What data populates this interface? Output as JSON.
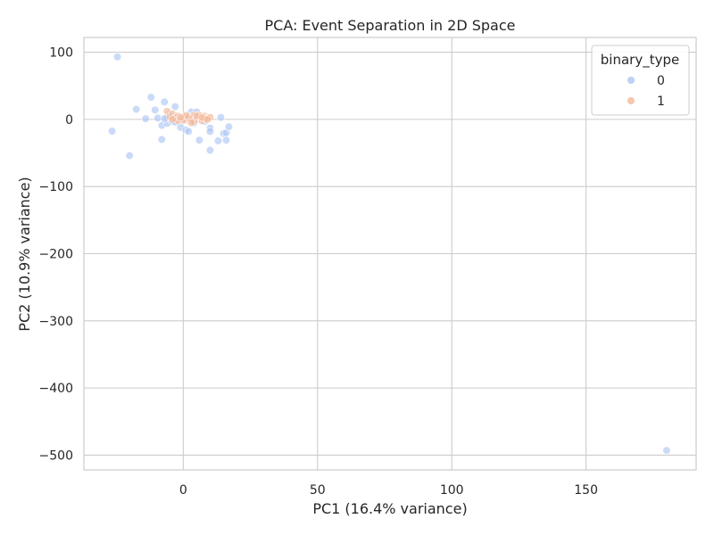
{
  "chart_data": {
    "type": "scatter",
    "title": "PCA: Event Separation in 2D Space",
    "xlabel": "PC1 (16.4% variance)",
    "ylabel": "PC2 (10.9% variance)",
    "xlim": [
      -37,
      191
    ],
    "ylim": [
      -522,
      122
    ],
    "xticks": [
      0,
      50,
      100,
      150
    ],
    "yticks": [
      100,
      0,
      -100,
      -200,
      -300,
      -400,
      -500
    ],
    "xtick_labels": [
      "0",
      "50",
      "100",
      "150"
    ],
    "ytick_labels": [
      "100",
      "0",
      "−100",
      "−200",
      "−300",
      "−400",
      "−500"
    ],
    "grid": true,
    "legend": {
      "title": "binary_type",
      "placement": "top-right",
      "entries": [
        "0",
        "1"
      ]
    },
    "series": [
      {
        "name": "0",
        "color": "#aec6f5",
        "points": [
          [
            -24.5,
            93
          ],
          [
            -26.5,
            -17.5
          ],
          [
            -20,
            -54
          ],
          [
            -17.5,
            15
          ],
          [
            -14,
            1
          ],
          [
            -12,
            33
          ],
          [
            -10.5,
            14
          ],
          [
            -9.5,
            2
          ],
          [
            -8,
            -30
          ],
          [
            -8,
            -9
          ],
          [
            -7,
            26
          ],
          [
            -6,
            -6
          ],
          [
            -5,
            8
          ],
          [
            -4,
            -3
          ],
          [
            -3,
            19
          ],
          [
            -2,
            1
          ],
          [
            -1,
            -12
          ],
          [
            1,
            -16
          ],
          [
            2,
            -18
          ],
          [
            3,
            11
          ],
          [
            4,
            -6
          ],
          [
            5,
            11
          ],
          [
            6,
            -31
          ],
          [
            8,
            -3
          ],
          [
            10,
            -46
          ],
          [
            10,
            -13
          ],
          [
            10,
            -18
          ],
          [
            13,
            -32
          ],
          [
            14,
            3
          ],
          [
            15,
            -21
          ],
          [
            16,
            -20
          ],
          [
            16,
            -31
          ],
          [
            17,
            -11
          ],
          [
            180,
            -493
          ],
          [
            -6,
            3
          ],
          [
            -5,
            5
          ],
          [
            -3,
            -4
          ],
          [
            -1,
            0
          ],
          [
            0,
            3
          ],
          [
            2,
            1
          ],
          [
            3,
            -2
          ],
          [
            4,
            -5
          ],
          [
            -7,
            1
          ],
          [
            6,
            2
          ]
        ]
      },
      {
        "name": "1",
        "color": "#f2b99a",
        "points": [
          [
            -6,
            12
          ],
          [
            -5,
            4
          ],
          [
            -4,
            8
          ],
          [
            -3,
            2
          ],
          [
            -2,
            5
          ],
          [
            -1,
            0
          ],
          [
            0,
            3
          ],
          [
            1,
            -1
          ],
          [
            2,
            4
          ],
          [
            3,
            1
          ],
          [
            4,
            6
          ],
          [
            5,
            0
          ],
          [
            6,
            3
          ],
          [
            7,
            -2
          ],
          [
            8,
            5
          ],
          [
            9,
            2
          ],
          [
            10,
            3
          ],
          [
            -2,
            -2
          ],
          [
            0,
            -1
          ],
          [
            2,
            2
          ],
          [
            4,
            -3
          ],
          [
            6,
            6
          ],
          [
            8,
            1
          ],
          [
            1,
            6
          ],
          [
            3,
            -5
          ],
          [
            5,
            5
          ],
          [
            7,
            3
          ],
          [
            -4,
            0
          ],
          [
            -1,
            3
          ],
          [
            9,
            0
          ]
        ]
      }
    ]
  }
}
